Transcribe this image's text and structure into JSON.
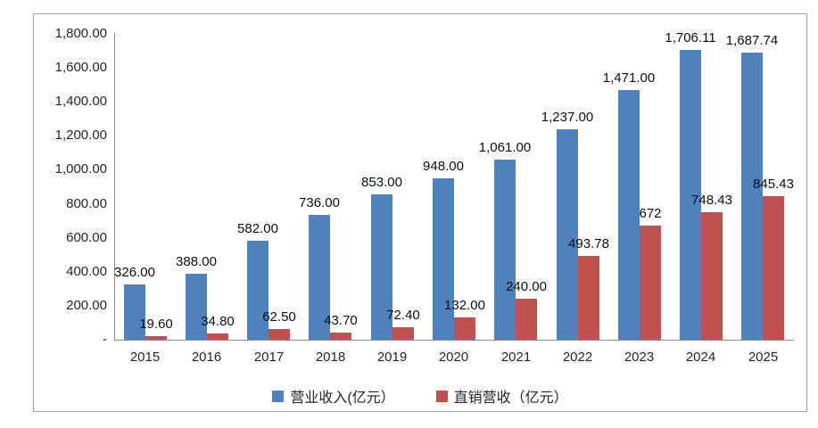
{
  "chart": {
    "frame_border_color": "#a3a3a3",
    "axis_color": "#8c8c8c",
    "background": "#ffffff"
  },
  "chart_data": {
    "type": "bar",
    "title": "",
    "xlabel": "",
    "ylabel": "",
    "grid": false,
    "legend_position": "bottom",
    "categories": [
      "2015",
      "2016",
      "2017",
      "2018",
      "2019",
      "2020",
      "2021",
      "2022",
      "2023",
      "2024",
      "2025"
    ],
    "series": [
      {
        "name": "营业收入(亿元）",
        "color": "#4f81bd",
        "values": [
          326,
          388,
          582,
          736,
          853,
          948,
          1061,
          1237,
          1471,
          1706.11,
          1687.74
        ],
        "labels": [
          "326.00",
          "388.00",
          "582.00",
          "736.00",
          "853.00",
          "948.00",
          "1,061.00",
          "1,237.00",
          "1,471.00",
          "1,706.11",
          "1,687.74"
        ]
      },
      {
        "name": "直销营收（亿元）",
        "color": "#c0504d",
        "values": [
          19.6,
          34.8,
          62.5,
          43.7,
          72.4,
          132,
          240,
          493.78,
          672,
          748.43,
          845.43
        ],
        "labels": [
          "19.60",
          "34.80",
          "62.50",
          "43.70",
          "72.40",
          "132.00",
          "240.00",
          "493.78",
          "672",
          "748.43",
          "845.43"
        ]
      }
    ],
    "y_axis": {
      "max": 1800,
      "min": 0,
      "ticks": [
        {
          "value": 1800,
          "label": "1,800.00"
        },
        {
          "value": 1600,
          "label": "1,600.00"
        },
        {
          "value": 1400,
          "label": "1,400.00"
        },
        {
          "value": 1200,
          "label": "1,200.00"
        },
        {
          "value": 1000,
          "label": "1,000.00"
        },
        {
          "value": 800,
          "label": "800.00"
        },
        {
          "value": 600,
          "label": "600.00"
        },
        {
          "value": 400,
          "label": "400.00"
        },
        {
          "value": 200,
          "label": "200.00"
        },
        {
          "value": 0,
          "label": "-"
        }
      ]
    }
  }
}
